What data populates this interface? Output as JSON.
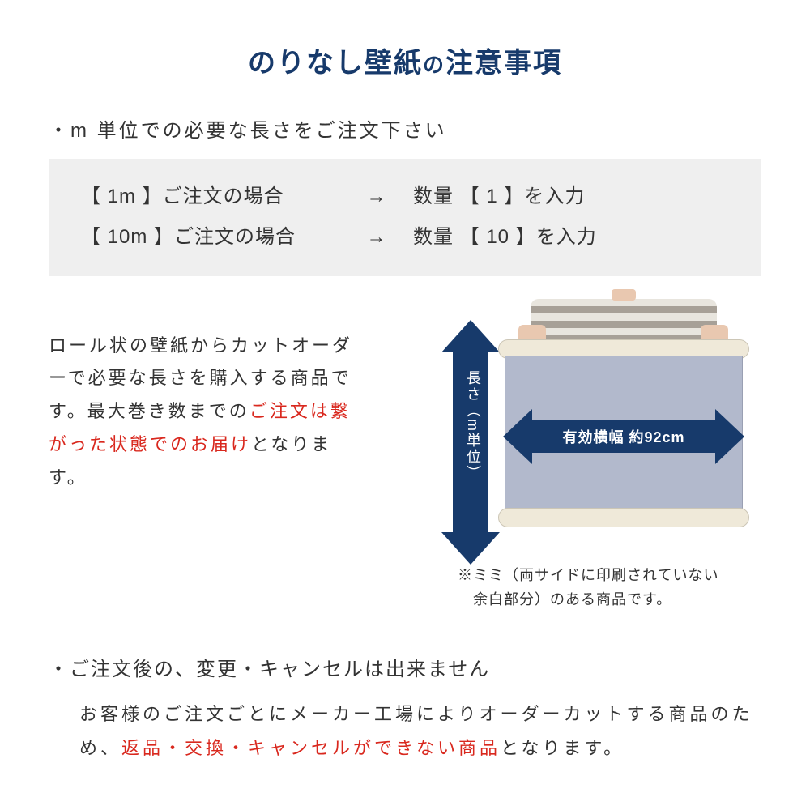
{
  "colors": {
    "title": "#173a6b",
    "text": "#333333",
    "red": "#d9281e",
    "box_bg": "#efefef",
    "arrow": "#173a6b",
    "arrow_text": "#ffffff",
    "panel_fill": "#b2b9cc",
    "roll_fill": "#efe9d9"
  },
  "title": {
    "main": "のりなし壁紙",
    "connector": "の",
    "tail": "注意事項"
  },
  "section1": {
    "bullet": "・m 単位での必要な長さをご注文下さい",
    "examples": [
      {
        "left": "【 1m  】ご注文の場合",
        "arrow": "→",
        "right": "数量 【  1  】を入力"
      },
      {
        "left": "【 10m 】ご注文の場合",
        "arrow": "→",
        "right": "数量 【 10 】を入力"
      }
    ],
    "paragraph_pre": "ロール状の壁紙からカットオーダーで必要な長さを購入する商品です。最大巻き数までの",
    "paragraph_red": "ご注文は繋がった状態でのお届け",
    "paragraph_post": "となります。",
    "v_label": "長さ（m単位）",
    "h_label": "有効横幅 約92cm",
    "note_l1": "※ミミ（両サイドに印刷されていない",
    "note_l2": "　余白部分）のある商品です。"
  },
  "section2": {
    "head": "・ご注文後の、変更・キャンセルは出来ません",
    "body_pre": "お客様のご注文ごとにメーカー工場によりオーダーカットする商品のため、",
    "body_red": "返品・交換・キャンセルができない商品",
    "body_post": "となります。"
  }
}
